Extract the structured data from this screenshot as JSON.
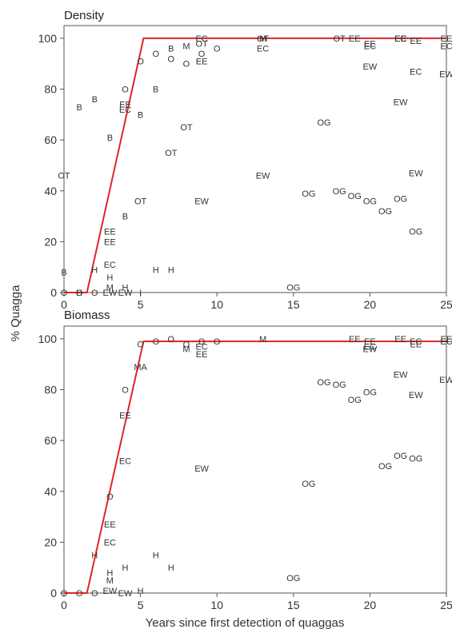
{
  "ylabel": "% Quagga",
  "xlabel": "Years since first detection of quaggas",
  "colors": {
    "fit_line": "#e02424",
    "axis": "#555555",
    "text": "#333333"
  },
  "chart_data": [
    {
      "type": "scatter",
      "title": "Density",
      "xlim": [
        0,
        25
      ],
      "ylim": [
        0,
        105
      ],
      "xticks": [
        0,
        5,
        10,
        15,
        20,
        25
      ],
      "yticks": [
        0,
        20,
        40,
        60,
        80,
        100
      ],
      "xtick_labels": [
        "0",
        "5",
        "10",
        "15",
        "20",
        "25"
      ],
      "ytick_labels": [
        "0",
        "20",
        "40",
        "60",
        "80",
        "100"
      ],
      "fit_line": {
        "x": [
          0,
          1.5,
          5.2,
          25
        ],
        "y": [
          0,
          0,
          100,
          100
        ]
      },
      "points": [
        {
          "label": "OT",
          "x": 0,
          "y": 46
        },
        {
          "label": "B",
          "x": 0,
          "y": 8
        },
        {
          "label": "O",
          "x": 0,
          "y": 0
        },
        {
          "label": "B",
          "x": 1,
          "y": 73
        },
        {
          "label": "H",
          "x": 1,
          "y": 0
        },
        {
          "label": "O",
          "x": 1,
          "y": 0
        },
        {
          "label": "B",
          "x": 2,
          "y": 76
        },
        {
          "label": "H",
          "x": 2,
          "y": 9
        },
        {
          "label": "O",
          "x": 2,
          "y": 0
        },
        {
          "label": "EW",
          "x": 3,
          "y": 0
        },
        {
          "label": "B",
          "x": 3,
          "y": 61
        },
        {
          "label": "EE",
          "x": 3,
          "y": 24
        },
        {
          "label": "EE",
          "x": 3,
          "y": 20
        },
        {
          "label": "EC",
          "x": 3,
          "y": 11
        },
        {
          "label": "H",
          "x": 3,
          "y": 6
        },
        {
          "label": "M",
          "x": 3,
          "y": 2
        },
        {
          "label": "H",
          "x": 4,
          "y": 2
        },
        {
          "label": "EW",
          "x": 4,
          "y": 0
        },
        {
          "label": "O",
          "x": 4,
          "y": 80
        },
        {
          "label": "EE",
          "x": 4,
          "y": 74
        },
        {
          "label": "EC",
          "x": 4,
          "y": 72
        },
        {
          "label": "B",
          "x": 4,
          "y": 30
        },
        {
          "label": "O",
          "x": 5,
          "y": 91
        },
        {
          "label": "B",
          "x": 5,
          "y": 70
        },
        {
          "label": "OT",
          "x": 5,
          "y": 36
        },
        {
          "label": "I",
          "x": 5,
          "y": 0
        },
        {
          "label": "O",
          "x": 6,
          "y": 94
        },
        {
          "label": "B",
          "x": 6,
          "y": 80
        },
        {
          "label": "H",
          "x": 6,
          "y": 9
        },
        {
          "label": "B",
          "x": 7,
          "y": 96
        },
        {
          "label": "O",
          "x": 7,
          "y": 92
        },
        {
          "label": "OT",
          "x": 7,
          "y": 55
        },
        {
          "label": "H",
          "x": 7,
          "y": 9
        },
        {
          "label": "M",
          "x": 8,
          "y": 97
        },
        {
          "label": "O",
          "x": 8,
          "y": 90
        },
        {
          "label": "OT",
          "x": 8,
          "y": 65
        },
        {
          "label": "EC",
          "x": 9,
          "y": 100
        },
        {
          "label": "OT",
          "x": 9,
          "y": 98
        },
        {
          "label": "O",
          "x": 9,
          "y": 94
        },
        {
          "label": "EE",
          "x": 9,
          "y": 91
        },
        {
          "label": "EW",
          "x": 9,
          "y": 36
        },
        {
          "label": "O",
          "x": 10,
          "y": 96
        },
        {
          "label": "M",
          "x": 13,
          "y": 100
        },
        {
          "label": "OT",
          "x": 13,
          "y": 100
        },
        {
          "label": "EC",
          "x": 13,
          "y": 96
        },
        {
          "label": "EW",
          "x": 13,
          "y": 46
        },
        {
          "label": "OG",
          "x": 15,
          "y": 2
        },
        {
          "label": "OG",
          "x": 16,
          "y": 39
        },
        {
          "label": "OG",
          "x": 17,
          "y": 67
        },
        {
          "label": "OT",
          "x": 18,
          "y": 100
        },
        {
          "label": "OG",
          "x": 18,
          "y": 40
        },
        {
          "label": "EE",
          "x": 19,
          "y": 100
        },
        {
          "label": "OG",
          "x": 19,
          "y": 38
        },
        {
          "label": "EE",
          "x": 20,
          "y": 98
        },
        {
          "label": "EC",
          "x": 20,
          "y": 97
        },
        {
          "label": "EW",
          "x": 20,
          "y": 89
        },
        {
          "label": "OG",
          "x": 20,
          "y": 36
        },
        {
          "label": "OG",
          "x": 21,
          "y": 32
        },
        {
          "label": "EE",
          "x": 22,
          "y": 100
        },
        {
          "label": "EC",
          "x": 22,
          "y": 100
        },
        {
          "label": "EW",
          "x": 22,
          "y": 75
        },
        {
          "label": "OG",
          "x": 22,
          "y": 37
        },
        {
          "label": "EE",
          "x": 23,
          "y": 99
        },
        {
          "label": "EC",
          "x": 23,
          "y": 87
        },
        {
          "label": "EW",
          "x": 23,
          "y": 47
        },
        {
          "label": "OG",
          "x": 23,
          "y": 24
        },
        {
          "label": "EE",
          "x": 25,
          "y": 100
        },
        {
          "label": "EC",
          "x": 25,
          "y": 97
        },
        {
          "label": "EW",
          "x": 25,
          "y": 86
        }
      ]
    },
    {
      "type": "scatter",
      "title": "Biomass",
      "xlim": [
        0,
        25
      ],
      "ylim": [
        0,
        105
      ],
      "xticks": [
        0,
        5,
        10,
        15,
        20,
        25
      ],
      "yticks": [
        0,
        20,
        40,
        60,
        80,
        100
      ],
      "xtick_labels": [
        "0",
        "5",
        "10",
        "15",
        "20",
        "25"
      ],
      "ytick_labels": [
        "0",
        "20",
        "40",
        "60",
        "80",
        "100"
      ],
      "fit_line": {
        "x": [
          0,
          1.5,
          5.2,
          25
        ],
        "y": [
          0,
          0,
          99,
          99
        ]
      },
      "points": [
        {
          "label": "O",
          "x": 0,
          "y": 0
        },
        {
          "label": "O",
          "x": 1,
          "y": 0
        },
        {
          "label": "H",
          "x": 2,
          "y": 15
        },
        {
          "label": "O",
          "x": 2,
          "y": 0
        },
        {
          "label": "O",
          "x": 3,
          "y": 38
        },
        {
          "label": "EE",
          "x": 3,
          "y": 27
        },
        {
          "label": "EC",
          "x": 3,
          "y": 20
        },
        {
          "label": "H",
          "x": 3,
          "y": 8
        },
        {
          "label": "M",
          "x": 3,
          "y": 5
        },
        {
          "label": "EW",
          "x": 3,
          "y": 1
        },
        {
          "label": "O",
          "x": 4,
          "y": 80
        },
        {
          "label": "EE",
          "x": 4,
          "y": 70
        },
        {
          "label": "EC",
          "x": 4,
          "y": 52
        },
        {
          "label": "H",
          "x": 4,
          "y": 10
        },
        {
          "label": "EW",
          "x": 4,
          "y": 0
        },
        {
          "label": "MA",
          "x": 5,
          "y": 89
        },
        {
          "label": "O",
          "x": 5,
          "y": 98
        },
        {
          "label": "H",
          "x": 5,
          "y": 1
        },
        {
          "label": "O",
          "x": 6,
          "y": 99
        },
        {
          "label": "H",
          "x": 6,
          "y": 15
        },
        {
          "label": "O",
          "x": 7,
          "y": 100
        },
        {
          "label": "H",
          "x": 7,
          "y": 10
        },
        {
          "label": "O",
          "x": 8,
          "y": 98
        },
        {
          "label": "M",
          "x": 8,
          "y": 96
        },
        {
          "label": "O",
          "x": 9,
          "y": 99
        },
        {
          "label": "EC",
          "x": 9,
          "y": 97
        },
        {
          "label": "EE",
          "x": 9,
          "y": 94
        },
        {
          "label": "EW",
          "x": 9,
          "y": 49
        },
        {
          "label": "O",
          "x": 10,
          "y": 99
        },
        {
          "label": "M",
          "x": 13,
          "y": 100
        },
        {
          "label": "OG",
          "x": 15,
          "y": 6
        },
        {
          "label": "OG",
          "x": 16,
          "y": 43
        },
        {
          "label": "OG",
          "x": 17,
          "y": 83
        },
        {
          "label": "OG",
          "x": 18,
          "y": 82
        },
        {
          "label": "EE",
          "x": 19,
          "y": 100
        },
        {
          "label": "OG",
          "x": 19,
          "y": 76
        },
        {
          "label": "EE",
          "x": 20,
          "y": 99
        },
        {
          "label": "EC",
          "x": 20,
          "y": 97
        },
        {
          "label": "EW",
          "x": 20,
          "y": 96
        },
        {
          "label": "OG",
          "x": 20,
          "y": 79
        },
        {
          "label": "OG",
          "x": 21,
          "y": 50
        },
        {
          "label": "EE",
          "x": 22,
          "y": 100
        },
        {
          "label": "EW",
          "x": 22,
          "y": 86
        },
        {
          "label": "OG",
          "x": 22,
          "y": 54
        },
        {
          "label": "EC",
          "x": 23,
          "y": 99
        },
        {
          "label": "EE",
          "x": 23,
          "y": 98
        },
        {
          "label": "EW",
          "x": 23,
          "y": 78
        },
        {
          "label": "OG",
          "x": 23,
          "y": 53
        },
        {
          "label": "EE",
          "x": 25,
          "y": 100
        },
        {
          "label": "EC",
          "x": 25,
          "y": 99
        },
        {
          "label": "EW",
          "x": 25,
          "y": 84
        }
      ]
    }
  ]
}
